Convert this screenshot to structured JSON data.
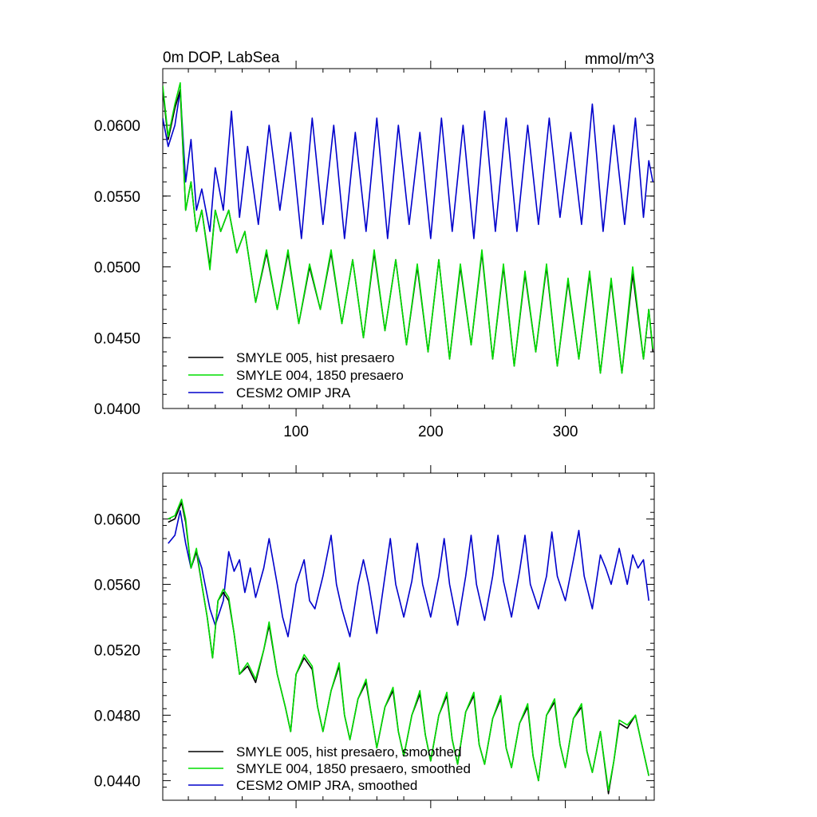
{
  "chart_data": [
    {
      "type": "line",
      "title": "0m DOP, LabSea",
      "units": "mmol/m^3",
      "xlim": [
        1,
        366
      ],
      "ylim": [
        0.04,
        0.064
      ],
      "xticks": [
        100,
        200,
        300
      ],
      "yticks": [
        "0.0400",
        "0.0450",
        "0.0500",
        "0.0550",
        "0.0600"
      ],
      "show_x_tick_labels": true,
      "legend": {
        "placement": "lower-left"
      },
      "series": [
        {
          "name": "SMYLE 005, hist presaero",
          "color": "#000000",
          "x": [
            1,
            5,
            10,
            14,
            18,
            22,
            26,
            30,
            36,
            40,
            44,
            50,
            56,
            62,
            70,
            78,
            86,
            94,
            102,
            110,
            118,
            126,
            134,
            142,
            150,
            158,
            166,
            174,
            182,
            190,
            198,
            206,
            214,
            222,
            230,
            238,
            246,
            254,
            262,
            270,
            278,
            286,
            294,
            302,
            310,
            318,
            326,
            334,
            342,
            350,
            358,
            362,
            365
          ],
          "y": [
            0.0625,
            0.059,
            0.0612,
            0.0625,
            0.054,
            0.056,
            0.0525,
            0.054,
            0.05,
            0.054,
            0.0525,
            0.054,
            0.051,
            0.0525,
            0.0475,
            0.051,
            0.047,
            0.051,
            0.046,
            0.05,
            0.047,
            0.051,
            0.046,
            0.0505,
            0.045,
            0.051,
            0.0455,
            0.0505,
            0.0445,
            0.05,
            0.044,
            0.0505,
            0.0435,
            0.05,
            0.0445,
            0.051,
            0.0435,
            0.05,
            0.043,
            0.0495,
            0.044,
            0.05,
            0.043,
            0.049,
            0.0435,
            0.0495,
            0.0425,
            0.049,
            0.0425,
            0.0495,
            0.0435,
            0.047,
            0.044
          ]
        },
        {
          "name": "SMYLE 004, 1850 presaero",
          "color": "#00dd00",
          "x": [
            1,
            5,
            10,
            14,
            18,
            22,
            26,
            30,
            36,
            40,
            44,
            50,
            56,
            62,
            70,
            78,
            86,
            94,
            102,
            110,
            118,
            126,
            134,
            142,
            150,
            158,
            166,
            174,
            182,
            190,
            198,
            206,
            214,
            222,
            230,
            238,
            246,
            254,
            262,
            270,
            278,
            286,
            294,
            302,
            310,
            318,
            326,
            334,
            342,
            350,
            358,
            362,
            365
          ],
          "y": [
            0.0628,
            0.0592,
            0.0615,
            0.063,
            0.054,
            0.056,
            0.0525,
            0.054,
            0.0498,
            0.054,
            0.0525,
            0.054,
            0.051,
            0.0525,
            0.0475,
            0.0512,
            0.047,
            0.0512,
            0.046,
            0.0502,
            0.047,
            0.0512,
            0.046,
            0.0505,
            0.045,
            0.0512,
            0.0455,
            0.0505,
            0.0445,
            0.0502,
            0.044,
            0.0505,
            0.0435,
            0.0502,
            0.0445,
            0.0512,
            0.0435,
            0.0502,
            0.043,
            0.0497,
            0.044,
            0.0502,
            0.043,
            0.0492,
            0.0435,
            0.0497,
            0.0425,
            0.0492,
            0.0425,
            0.05,
            0.0435,
            0.047,
            0.0442
          ]
        },
        {
          "name": "CESM2 OMIP JRA",
          "color": "#0000cc",
          "x": [
            1,
            5,
            10,
            14,
            18,
            22,
            26,
            30,
            36,
            40,
            46,
            52,
            58,
            64,
            72,
            80,
            88,
            96,
            104,
            112,
            120,
            128,
            136,
            144,
            152,
            160,
            168,
            176,
            184,
            192,
            200,
            208,
            216,
            224,
            232,
            240,
            248,
            256,
            264,
            272,
            280,
            288,
            296,
            304,
            312,
            320,
            328,
            336,
            344,
            352,
            358,
            362,
            365
          ],
          "y": [
            0.0605,
            0.0585,
            0.06,
            0.0625,
            0.056,
            0.059,
            0.054,
            0.0555,
            0.0525,
            0.057,
            0.054,
            0.061,
            0.0535,
            0.0585,
            0.053,
            0.06,
            0.054,
            0.0595,
            0.052,
            0.0605,
            0.053,
            0.06,
            0.052,
            0.0595,
            0.0525,
            0.0605,
            0.052,
            0.06,
            0.053,
            0.0595,
            0.052,
            0.0605,
            0.0525,
            0.06,
            0.052,
            0.061,
            0.0525,
            0.0605,
            0.0525,
            0.06,
            0.053,
            0.0605,
            0.0535,
            0.0595,
            0.053,
            0.0615,
            0.0525,
            0.06,
            0.053,
            0.0605,
            0.0535,
            0.0575,
            0.056
          ]
        }
      ]
    },
    {
      "type": "line",
      "title": "",
      "units": "",
      "xlim": [
        1,
        366
      ],
      "ylim": [
        0.0428,
        0.0628
      ],
      "xticks": [
        100,
        200,
        300
      ],
      "yticks": [
        "0.0440",
        "0.0480",
        "0.0520",
        "0.0560",
        "0.0600"
      ],
      "show_x_tick_labels": false,
      "legend": {
        "placement": "lower-left"
      },
      "series": [
        {
          "name": "SMYLE 005, hist presaero, smoothed",
          "color": "#000000",
          "x": [
            5,
            10,
            15,
            18,
            22,
            26,
            30,
            34,
            38,
            42,
            46,
            50,
            54,
            58,
            64,
            70,
            76,
            80,
            86,
            92,
            96,
            100,
            106,
            112,
            116,
            120,
            126,
            132,
            136,
            140,
            146,
            152,
            156,
            160,
            166,
            172,
            176,
            180,
            186,
            192,
            196,
            200,
            206,
            212,
            216,
            220,
            226,
            232,
            236,
            240,
            246,
            252,
            256,
            260,
            266,
            272,
            276,
            280,
            286,
            292,
            296,
            300,
            306,
            312,
            316,
            320,
            326,
            332,
            336,
            340,
            346,
            352,
            356,
            362
          ],
          "y": [
            0.0598,
            0.06,
            0.061,
            0.0598,
            0.057,
            0.058,
            0.056,
            0.054,
            0.0515,
            0.055,
            0.0555,
            0.055,
            0.053,
            0.0505,
            0.051,
            0.05,
            0.052,
            0.0535,
            0.0505,
            0.0485,
            0.047,
            0.0505,
            0.0515,
            0.0508,
            0.0485,
            0.047,
            0.0495,
            0.051,
            0.048,
            0.0465,
            0.049,
            0.05,
            0.048,
            0.046,
            0.0485,
            0.0495,
            0.047,
            0.0455,
            0.048,
            0.0493,
            0.0468,
            0.0452,
            0.048,
            0.0492,
            0.0465,
            0.045,
            0.0482,
            0.0492,
            0.0462,
            0.045,
            0.0478,
            0.049,
            0.046,
            0.0448,
            0.0475,
            0.0485,
            0.0455,
            0.044,
            0.048,
            0.0488,
            0.0462,
            0.0448,
            0.0478,
            0.0485,
            0.0458,
            0.0445,
            0.047,
            0.0432,
            0.0452,
            0.0475,
            0.0472,
            0.048,
            0.0465,
            0.0443
          ]
        },
        {
          "name": "SMYLE 004, 1850 presaero, smoothed",
          "color": "#00dd00",
          "x": [
            5,
            10,
            15,
            18,
            22,
            26,
            30,
            34,
            38,
            42,
            46,
            50,
            54,
            58,
            64,
            70,
            76,
            80,
            86,
            92,
            96,
            100,
            106,
            112,
            116,
            120,
            126,
            132,
            136,
            140,
            146,
            152,
            156,
            160,
            166,
            172,
            176,
            180,
            186,
            192,
            196,
            200,
            206,
            212,
            216,
            220,
            226,
            232,
            236,
            240,
            246,
            252,
            256,
            260,
            266,
            272,
            276,
            280,
            286,
            292,
            296,
            300,
            306,
            312,
            316,
            320,
            326,
            332,
            336,
            340,
            346,
            352,
            356,
            362
          ],
          "y": [
            0.06,
            0.0602,
            0.0612,
            0.06,
            0.057,
            0.0582,
            0.056,
            0.054,
            0.0515,
            0.055,
            0.0557,
            0.0552,
            0.053,
            0.0505,
            0.0512,
            0.0502,
            0.052,
            0.0537,
            0.0505,
            0.0485,
            0.047,
            0.0505,
            0.0517,
            0.051,
            0.0485,
            0.047,
            0.0495,
            0.0512,
            0.048,
            0.0465,
            0.049,
            0.0502,
            0.048,
            0.046,
            0.0485,
            0.0497,
            0.047,
            0.0455,
            0.048,
            0.0495,
            0.0468,
            0.0452,
            0.048,
            0.0494,
            0.0465,
            0.045,
            0.0482,
            0.0494,
            0.0462,
            0.045,
            0.0478,
            0.0492,
            0.046,
            0.0448,
            0.0475,
            0.0487,
            0.0455,
            0.044,
            0.048,
            0.049,
            0.0462,
            0.0448,
            0.0478,
            0.0487,
            0.0458,
            0.0445,
            0.047,
            0.0434,
            0.0452,
            0.0477,
            0.0474,
            0.048,
            0.0465,
            0.0443
          ]
        },
        {
          "name": "CESM2 OMIP JRA, smoothed",
          "color": "#0000cc",
          "x": [
            5,
            10,
            14,
            18,
            22,
            26,
            30,
            36,
            40,
            46,
            50,
            54,
            58,
            62,
            66,
            70,
            76,
            80,
            86,
            90,
            94,
            100,
            106,
            110,
            114,
            120,
            126,
            130,
            134,
            140,
            146,
            150,
            154,
            160,
            166,
            170,
            174,
            180,
            186,
            190,
            194,
            200,
            206,
            210,
            214,
            220,
            226,
            230,
            234,
            240,
            246,
            250,
            254,
            260,
            266,
            270,
            274,
            280,
            286,
            290,
            294,
            300,
            306,
            310,
            314,
            320,
            326,
            330,
            334,
            340,
            346,
            350,
            354,
            358,
            362
          ],
          "y": [
            0.0585,
            0.059,
            0.0605,
            0.0585,
            0.057,
            0.058,
            0.057,
            0.0545,
            0.0535,
            0.055,
            0.058,
            0.0568,
            0.0575,
            0.0555,
            0.057,
            0.0552,
            0.057,
            0.0588,
            0.056,
            0.054,
            0.0528,
            0.056,
            0.0575,
            0.055,
            0.0545,
            0.0565,
            0.059,
            0.056,
            0.0545,
            0.0528,
            0.056,
            0.0575,
            0.056,
            0.053,
            0.0565,
            0.0588,
            0.056,
            0.054,
            0.0562,
            0.0585,
            0.056,
            0.054,
            0.0565,
            0.0588,
            0.056,
            0.0535,
            0.0565,
            0.059,
            0.056,
            0.0538,
            0.0565,
            0.059,
            0.0562,
            0.054,
            0.0568,
            0.059,
            0.056,
            0.0545,
            0.0565,
            0.0592,
            0.0565,
            0.055,
            0.0575,
            0.0593,
            0.0565,
            0.0545,
            0.0578,
            0.057,
            0.056,
            0.0582,
            0.056,
            0.0578,
            0.057,
            0.0575,
            0.055
          ]
        }
      ]
    }
  ]
}
